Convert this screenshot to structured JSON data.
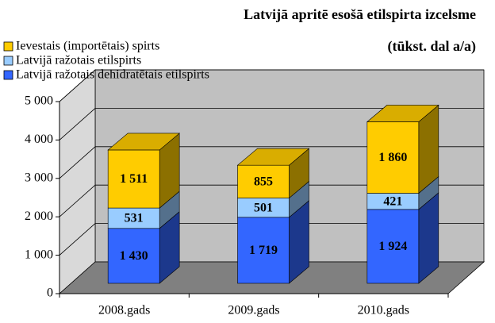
{
  "chart_data": {
    "type": "bar",
    "stacked": true,
    "title": "Latvijā apritē esošā etilspirta izcelsme",
    "subtitle": "(tūkst. dal a/a)",
    "categories": [
      "2008.gads",
      "2009.gads",
      "2010.gads"
    ],
    "series": [
      {
        "name": "Latvijā ražotais dehidratētais etilspirts",
        "color": "#3366ff",
        "values": [
          1430,
          1719,
          1924
        ],
        "value_labels": [
          "1 430",
          "1 719",
          "1 924"
        ]
      },
      {
        "name": "Latvijā ražotais etilspirts",
        "color": "#99ccff",
        "values": [
          531,
          501,
          421
        ],
        "value_labels": [
          "531",
          "501",
          "421"
        ]
      },
      {
        "name": "Ievestais (importētais) spirts",
        "color": "#ffcc00",
        "values": [
          1511,
          855,
          1860
        ],
        "value_labels": [
          "1 511",
          "855",
          "1 860"
        ]
      }
    ],
    "ylim": [
      0,
      5000
    ],
    "yticks": [
      0,
      {
        "value": 1000,
        "label": "1 000"
      },
      {
        "value": 2000,
        "label": "2 000"
      },
      {
        "value": 3000,
        "label": "3 000"
      },
      {
        "value": 4000,
        "label": "4 000"
      },
      {
        "value": 5000,
        "label": "5 000"
      }
    ],
    "grid": true
  }
}
